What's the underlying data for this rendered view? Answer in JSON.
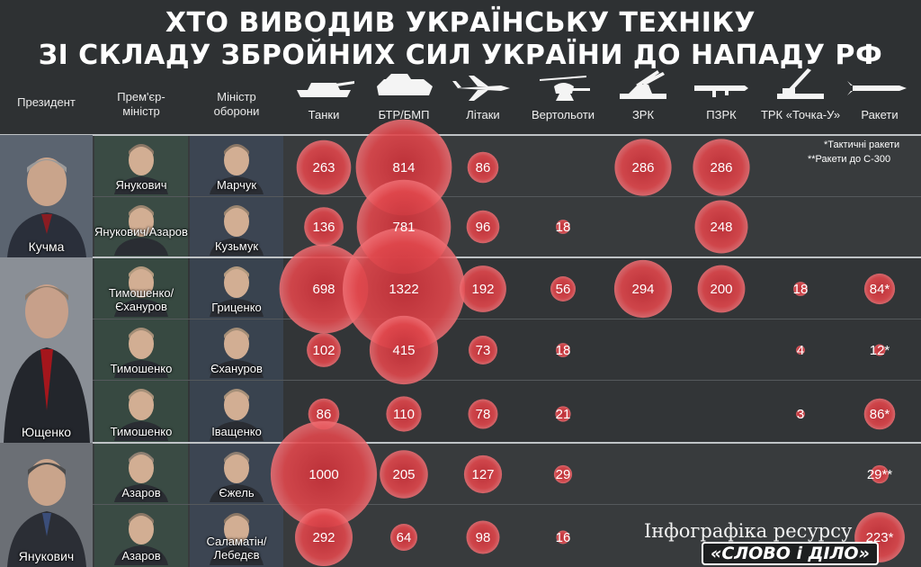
{
  "title": {
    "line1": "ХТО ВИВОДИВ УКРАЇНСЬКУ ТЕХНІКУ",
    "line2": "ЗІ СКЛАДУ ЗБРОЙНИХ СИЛ УКРАЇНИ ДО НАПАДУ РФ"
  },
  "headers": {
    "president": "Президент",
    "pm": "Прем'єр-міністр",
    "pm_line1": "Прем'єр-",
    "pm_line2": "міністр",
    "minister": "Міністр оборони",
    "minister_line1": "Міністр",
    "minister_line2": "оборони"
  },
  "icons": [
    "tank-icon",
    "apc-icon",
    "jet-icon",
    "helicopter-icon",
    "sam-launcher-icon",
    "manpads-icon",
    "tochka-launcher-icon",
    "missile-icon"
  ],
  "notes": {
    "tactical": "*Тактичні ракети",
    "s300": "**Ракети до С-300"
  },
  "credit": {
    "text": "Інфографіка ресурсу",
    "brand": "«СЛОВО і ДІЛО»"
  },
  "colors": {
    "background": "#2e3133",
    "bubble": "#e0474c",
    "kuchma_band": "#3a3d3f",
    "yushchenko_band": "#34373a",
    "yanukovych_band": "#3a3d3f"
  },
  "presidents": [
    "Кучма",
    "Ющенко",
    "Янукович"
  ],
  "rows": [
    {
      "pm": "Янукович",
      "minister": "Марчук"
    },
    {
      "pm": "Янукович/Азаров",
      "minister": "Кузьмук"
    },
    {
      "pm": "Тимошенко/Єхануров",
      "minister": "Гриценко"
    },
    {
      "pm": "Тимошенко",
      "minister": "Єхануров"
    },
    {
      "pm": "Тимошенко",
      "minister": "Іващенко"
    },
    {
      "pm": "Азаров",
      "minister": "Єжель"
    },
    {
      "pm": "Азаров",
      "minister": "Саламатін/Лебедєв"
    }
  ],
  "chart_data": {
    "type": "bubble-table",
    "categories": [
      "Танки",
      "БТР/БМП",
      "Літаки",
      "Вертольоти",
      "ЗРК",
      "ПЗРК",
      "ТРК «Точка-У»",
      "Ракети"
    ],
    "series": [
      {
        "values": [
          263,
          814,
          86,
          null,
          286,
          286,
          null,
          null
        ],
        "labels": [
          "263",
          "814",
          "86",
          "",
          "286",
          "286",
          "",
          ""
        ]
      },
      {
        "values": [
          136,
          781,
          96,
          18,
          null,
          248,
          null,
          null
        ],
        "labels": [
          "136",
          "781",
          "96",
          "18",
          "",
          "248",
          "",
          ""
        ]
      },
      {
        "values": [
          698,
          1322,
          192,
          56,
          294,
          200,
          18,
          84
        ],
        "labels": [
          "698",
          "1322",
          "192",
          "56",
          "294",
          "200",
          "18",
          "84*"
        ]
      },
      {
        "values": [
          102,
          415,
          73,
          18,
          null,
          null,
          4,
          12
        ],
        "labels": [
          "102",
          "415",
          "73",
          "18",
          "",
          "",
          "4",
          "12*"
        ]
      },
      {
        "values": [
          86,
          110,
          78,
          21,
          null,
          null,
          3,
          86
        ],
        "labels": [
          "86",
          "110",
          "78",
          "21",
          "",
          "",
          "3",
          "86*"
        ]
      },
      {
        "values": [
          1000,
          205,
          127,
          29,
          null,
          null,
          null,
          29
        ],
        "labels": [
          "1000",
          "205",
          "127",
          "29",
          "",
          "",
          "",
          "29**"
        ]
      },
      {
        "values": [
          292,
          64,
          98,
          16,
          null,
          null,
          null,
          223
        ],
        "labels": [
          "292",
          "64",
          "98",
          "16",
          "",
          "",
          "",
          "223*"
        ]
      }
    ]
  }
}
